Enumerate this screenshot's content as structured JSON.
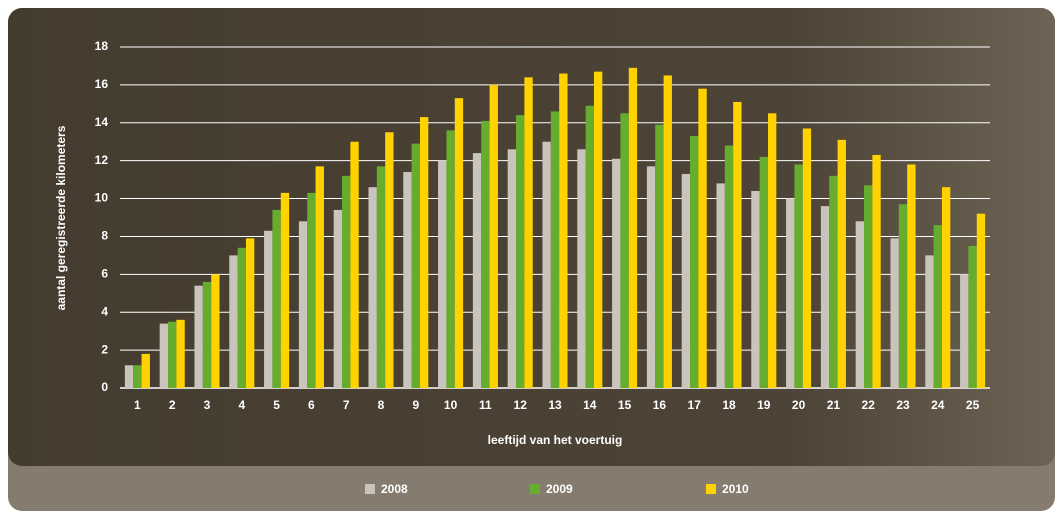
{
  "chart_data": {
    "type": "bar",
    "ylabel": "aantal geregistreerde kilometers",
    "xlabel": "leeftijd van het voertuig",
    "categories": [
      "1",
      "2",
      "3",
      "4",
      "5",
      "6",
      "7",
      "8",
      "9",
      "10",
      "11",
      "12",
      "13",
      "14",
      "15",
      "16",
      "17",
      "18",
      "19",
      "20",
      "21",
      "22",
      "23",
      "24",
      "25"
    ],
    "series": [
      {
        "name": "2008",
        "color": "#c9c5bd",
        "values": [
          1.2,
          3.4,
          5.4,
          7.0,
          8.3,
          8.8,
          9.4,
          10.6,
          11.4,
          12.0,
          12.4,
          12.6,
          13.0,
          12.6,
          12.1,
          11.7,
          11.3,
          10.8,
          10.4,
          10.0,
          9.6,
          8.8,
          7.9,
          7.0,
          6.0
        ]
      },
      {
        "name": "2009",
        "color": "#66ad2e",
        "values": [
          1.2,
          3.5,
          5.6,
          7.4,
          9.4,
          10.3,
          11.2,
          11.7,
          12.9,
          13.6,
          14.1,
          14.4,
          14.6,
          14.9,
          14.5,
          13.9,
          13.3,
          12.8,
          12.2,
          11.8,
          11.2,
          10.7,
          9.7,
          8.6,
          7.5
        ]
      },
      {
        "name": "2010",
        "color": "#ffd200",
        "values": [
          1.8,
          3.6,
          6.0,
          7.9,
          10.3,
          11.7,
          13.0,
          13.5,
          14.3,
          15.3,
          16.0,
          16.4,
          16.6,
          16.7,
          16.9,
          16.5,
          15.8,
          15.1,
          14.5,
          13.7,
          13.1,
          12.3,
          11.8,
          10.6,
          9.2
        ]
      }
    ],
    "ylim": [
      0,
      18
    ],
    "yticks": [
      0,
      2,
      4,
      6,
      8,
      10,
      12,
      14,
      16,
      18
    ],
    "grid": true
  }
}
